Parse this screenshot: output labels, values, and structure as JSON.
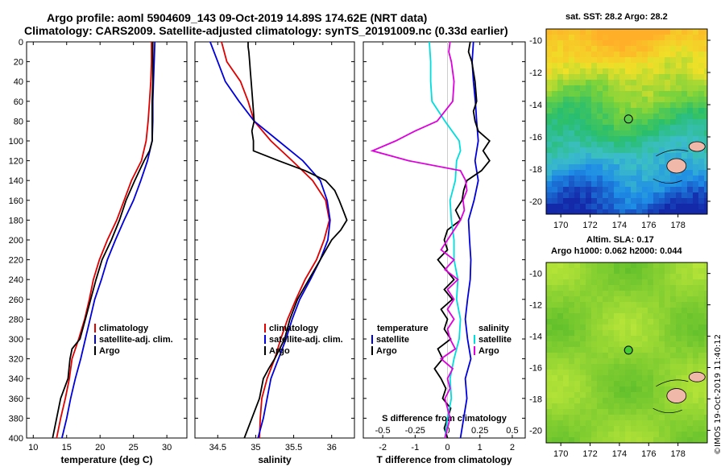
{
  "header": {
    "title_line1": "Argo profile: aoml 5904609_143 09-Oct-2019 14.89S 174.62E (NRT data)",
    "title_line2": "Climatology: CARS2009. Satellite-adjusted climatology: synTS_20191009.nc (0.33d earlier)"
  },
  "sst_map": {
    "title": "sat. SST: 28.2 Argo: 28.2",
    "x_ticks": [
      "170",
      "172",
      "174",
      "176",
      "178"
    ],
    "y_ticks": [
      "-10",
      "-12",
      "-14",
      "-16",
      "-18",
      "-20"
    ],
    "argo_lon": 174.62,
    "argo_lat": -14.89
  },
  "sla_map": {
    "title_line1": "Altim. SLA: 0.17",
    "title_line2": "Argo h1000: 0.062 h2000: 0.044",
    "x_ticks": [
      "170",
      "172",
      "174",
      "176",
      "178"
    ],
    "y_ticks": [
      "-10",
      "-12",
      "-14",
      "-16",
      "-18",
      "-20"
    ],
    "argo_lon": 174.62,
    "argo_lat": -14.89
  },
  "credit": "©IMOS 19-Oct-2019 11:40:12",
  "colors": {
    "climatology": "#e00000",
    "satellite": "#0000dd",
    "argo": "#000000",
    "s_sat": "#00dddd",
    "s_diff": "#dd00dd"
  },
  "chart_data": [
    {
      "type": "line",
      "name": "temperature",
      "xlabel": "temperature (deg C)",
      "ylabel": "",
      "xlim": [
        9,
        33
      ],
      "ylim": [
        0,
        400
      ],
      "x_ticks": [
        10,
        15,
        20,
        25,
        30
      ],
      "y_ticks": [
        0,
        20,
        40,
        60,
        80,
        100,
        120,
        140,
        160,
        180,
        200,
        220,
        240,
        260,
        280,
        300,
        320,
        340,
        360,
        380,
        400
      ],
      "legend": [
        "climatology",
        "satellite-adj. clim.",
        "Argo"
      ],
      "legend_position": "bottom-right",
      "series": [
        {
          "name": "climatology",
          "color": "#e00000",
          "depth": [
            0,
            20,
            40,
            60,
            80,
            100,
            120,
            140,
            160,
            180,
            200,
            220,
            240,
            260,
            280,
            300,
            320,
            340,
            360,
            380,
            400
          ],
          "values": [
            27.7,
            27.7,
            27.6,
            27.4,
            27.2,
            26.9,
            26.2,
            24.7,
            23.6,
            22.5,
            21.1,
            19.9,
            19.0,
            18.4,
            17.7,
            16.8,
            15.8,
            15.4,
            14.8,
            14.1,
            13.5
          ]
        },
        {
          "name": "satellite-adj. clim.",
          "color": "#0000dd",
          "depth": [
            0,
            20,
            40,
            60,
            80,
            100,
            120,
            140,
            160,
            180,
            200,
            220,
            240,
            260,
            280,
            300,
            320,
            340,
            360,
            380,
            400
          ],
          "values": [
            28.2,
            28.1,
            28.0,
            27.9,
            27.9,
            27.8,
            27.1,
            26.1,
            25.0,
            23.6,
            22.3,
            21.1,
            20.2,
            19.2,
            18.5,
            17.8,
            17.1,
            16.3,
            15.6,
            15.0,
            14.3
          ]
        },
        {
          "name": "Argo",
          "color": "#000000",
          "depth": [
            0,
            20,
            40,
            60,
            80,
            100,
            110,
            120,
            130,
            140,
            160,
            180,
            200,
            220,
            240,
            260,
            280,
            300,
            310,
            320,
            340,
            360,
            380,
            400
          ],
          "values": [
            27.9,
            27.9,
            27.9,
            27.8,
            27.8,
            27.8,
            27.4,
            26.6,
            25.9,
            25.2,
            23.9,
            22.9,
            21.7,
            20.3,
            19.4,
            18.6,
            17.8,
            17.0,
            15.8,
            15.5,
            15.2,
            14.1,
            13.5,
            12.9
          ]
        }
      ]
    },
    {
      "type": "line",
      "name": "salinity",
      "xlabel": "salinity",
      "ylabel": "",
      "xlim": [
        34.2,
        36.3
      ],
      "ylim": [
        0,
        400
      ],
      "x_ticks": [
        34.5,
        35,
        35.5,
        36
      ],
      "y_ticks": [
        0,
        20,
        40,
        60,
        80,
        100,
        120,
        140,
        160,
        180,
        200,
        220,
        240,
        260,
        280,
        300,
        320,
        340,
        360,
        380,
        400
      ],
      "legend": [
        "climatology",
        "satellite-adj. clim.",
        "Argo"
      ],
      "legend_position": "bottom-right",
      "series": [
        {
          "name": "climatology",
          "color": "#e00000",
          "depth": [
            0,
            20,
            40,
            60,
            80,
            100,
            120,
            140,
            160,
            180,
            200,
            220,
            240,
            260,
            280,
            300,
            320,
            340,
            360,
            380,
            400
          ],
          "values": [
            34.55,
            34.62,
            34.8,
            34.9,
            34.98,
            35.2,
            35.48,
            35.75,
            35.92,
            35.97,
            35.9,
            35.8,
            35.65,
            35.53,
            35.42,
            35.33,
            35.25,
            35.15,
            35.08,
            35.06,
            35.05
          ]
        },
        {
          "name": "satellite-adj. clim.",
          "color": "#0000dd",
          "depth": [
            0,
            20,
            40,
            60,
            80,
            100,
            120,
            140,
            160,
            180,
            200,
            220,
            240,
            260,
            280,
            300,
            320,
            340,
            360,
            380,
            400
          ],
          "values": [
            34.4,
            34.5,
            34.6,
            34.78,
            34.98,
            35.3,
            35.62,
            35.85,
            35.94,
            35.98,
            35.95,
            35.85,
            35.72,
            35.58,
            35.48,
            35.4,
            35.3,
            35.2,
            35.15,
            35.1,
            35.03
          ]
        },
        {
          "name": "Argo",
          "color": "#000000",
          "depth": [
            0,
            5,
            10,
            20,
            30,
            40,
            60,
            80,
            90,
            100,
            110,
            120,
            130,
            140,
            150,
            160,
            170,
            180,
            190,
            200,
            220,
            240,
            260,
            280,
            300,
            320,
            330,
            340,
            360,
            380,
            400
          ],
          "values": [
            34.9,
            34.9,
            34.91,
            34.92,
            34.93,
            34.94,
            34.96,
            34.98,
            34.95,
            34.97,
            34.97,
            35.3,
            35.65,
            35.92,
            36.04,
            36.1,
            36.15,
            36.2,
            36.12,
            36.0,
            35.85,
            35.7,
            35.55,
            35.45,
            35.38,
            35.25,
            35.17,
            35.1,
            35.05,
            34.95,
            34.85
          ]
        }
      ]
    },
    {
      "type": "line",
      "name": "difference_from_climatology",
      "xlabel": "T difference from climatology",
      "x2label": "S difference from climatology",
      "xlim": [
        -2.6,
        2.4
      ],
      "x2lim": [
        -0.65,
        0.6
      ],
      "ylim": [
        0,
        400
      ],
      "x_ticks": [
        -2,
        -1,
        0,
        1,
        2
      ],
      "x2_ticks": [
        "-0.5",
        "-0.25",
        "0",
        "0.25",
        "0.5"
      ],
      "y_ticks": [
        0,
        20,
        40,
        60,
        80,
        100,
        120,
        140,
        160,
        180,
        200,
        220,
        240,
        260,
        280,
        300,
        320,
        340,
        360,
        380,
        400
      ],
      "legend_temperature_heading": "temperature",
      "legend_salinity_heading": "salinity",
      "legend_temperature": [
        "satellite",
        "Argo"
      ],
      "legend_salinity": [
        "satellite",
        "Argo"
      ],
      "series": [
        {
          "name": "T satellite",
          "color": "#0000dd",
          "depth": [
            0,
            20,
            40,
            60,
            80,
            100,
            120,
            140,
            160,
            180,
            200,
            220,
            240,
            260,
            280,
            300,
            320,
            340,
            360,
            380,
            400
          ],
          "values": [
            0.8,
            0.76,
            0.8,
            0.86,
            0.9,
            0.95,
            0.85,
            0.95,
            0.82,
            0.65,
            0.68,
            0.72,
            0.7,
            0.62,
            0.55,
            0.62,
            0.72,
            0.55,
            0.6,
            0.5,
            0.4
          ]
        },
        {
          "name": "T Argo",
          "color": "#000000",
          "depth": [
            0,
            10,
            20,
            40,
            60,
            70,
            80,
            90,
            100,
            110,
            120,
            130,
            140,
            150,
            160,
            170,
            180,
            190,
            200,
            210,
            220,
            230,
            240,
            250,
            260,
            270,
            280,
            290,
            300,
            310,
            320,
            330,
            340,
            350,
            360,
            370,
            380,
            390,
            400
          ],
          "values": [
            0.7,
            0.65,
            0.75,
            0.85,
            0.9,
            0.8,
            0.85,
            0.95,
            1.3,
            1.1,
            1.3,
            1.05,
            0.6,
            0.5,
            0.45,
            0.25,
            0.4,
            0.0,
            -0.1,
            0.0,
            -0.3,
            -0.05,
            0.2,
            -0.1,
            0.15,
            -0.2,
            0.0,
            -0.1,
            0.1,
            -0.3,
            -0.15,
            -0.4,
            -0.2,
            -0.05,
            -0.15,
            0.1,
            0.0,
            -0.1,
            0.0
          ]
        },
        {
          "name": "S satellite",
          "color": "#00dddd",
          "depth": [
            0,
            20,
            40,
            60,
            80,
            100,
            110,
            120,
            140,
            160,
            180,
            200,
            220,
            240,
            260,
            280,
            300,
            320,
            340,
            360,
            380,
            400
          ],
          "values": [
            -0.14,
            -0.13,
            -0.13,
            -0.12,
            -0.02,
            0.09,
            0.1,
            0.07,
            0.06,
            0.02,
            0.03,
            0.05,
            0.05,
            0.08,
            0.07,
            0.1,
            0.09,
            0.05,
            0.02,
            0.03,
            0.0,
            -0.02
          ]
        },
        {
          "name": "S Argo",
          "color": "#dd00dd",
          "depth": [
            0,
            10,
            20,
            40,
            60,
            80,
            90,
            100,
            110,
            120,
            130,
            140,
            150,
            160,
            170,
            180,
            190,
            200,
            210,
            220,
            230,
            240,
            250,
            260,
            270,
            280,
            290,
            300,
            310,
            320,
            330,
            340,
            350,
            360,
            370,
            380,
            390,
            400
          ],
          "values": [
            0.02,
            0.01,
            0.03,
            0.05,
            0.04,
            -0.08,
            -0.25,
            -0.4,
            -0.58,
            -0.3,
            0.1,
            0.14,
            0.15,
            0.12,
            0.13,
            0.1,
            0.05,
            0.0,
            -0.05,
            0.05,
            -0.02,
            0.08,
            0.0,
            0.05,
            0.0,
            0.05,
            0.0,
            0.02,
            0.06,
            -0.05,
            0.04,
            0.0,
            0.02,
            -0.02,
            0.0,
            0.02,
            0.0,
            -0.02
          ]
        }
      ]
    }
  ]
}
